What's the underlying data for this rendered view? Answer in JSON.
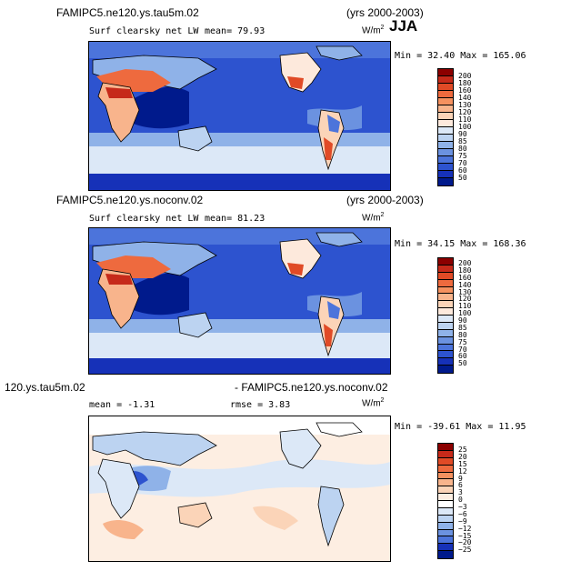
{
  "season": "JJA",
  "panels": [
    {
      "case": "FAMIPC5.ne120.ys.tau5m.02",
      "years": "(yrs 2000-2003)",
      "variable": "Surf clearsky net LW",
      "stat": "mean=  79.93",
      "units": "W/m",
      "units_sup": "2",
      "minmax": "Min =  32.40 Max = 165.06",
      "levels": [
        "200",
        "180",
        "160",
        "140",
        "130",
        "120",
        "110",
        "100",
        "90",
        "85",
        "80",
        "75",
        "70",
        "60",
        "50"
      ],
      "colors": [
        "#8b0000",
        "#c62a1a",
        "#e04a26",
        "#ee6a3e",
        "#f5915f",
        "#f8b48c",
        "#fbd4b8",
        "#fde9dc",
        "#dce8f7",
        "#bcd3f1",
        "#8fb2e8",
        "#6b92e0",
        "#4c74db",
        "#2d53cf",
        "#1631b8",
        "#001a8c"
      ],
      "type": "abs"
    },
    {
      "case": "FAMIPC5.ne120.ys.noconv.02",
      "years": "(yrs 2000-2003)",
      "variable": "Surf clearsky net LW",
      "stat": "mean=  81.23",
      "units": "W/m",
      "units_sup": "2",
      "minmax": "Min =  34.15 Max = 168.36",
      "levels": [
        "200",
        "180",
        "160",
        "140",
        "130",
        "120",
        "110",
        "100",
        "90",
        "85",
        "80",
        "75",
        "70",
        "60",
        "50"
      ],
      "colors": [
        "#8b0000",
        "#c62a1a",
        "#e04a26",
        "#ee6a3e",
        "#f5915f",
        "#f8b48c",
        "#fbd4b8",
        "#fde9dc",
        "#dce8f7",
        "#bcd3f1",
        "#8fb2e8",
        "#6b92e0",
        "#4c74db",
        "#2d53cf",
        "#1631b8",
        "#001a8c"
      ],
      "type": "abs"
    },
    {
      "case": "120.ys.tau5m.02",
      "case2": "- FAMIPC5.ne120.ys.noconv.02",
      "stat": "mean =  -1.31",
      "rmse": "rmse =   3.83",
      "units": "W/m",
      "units_sup": "2",
      "minmax": "Min = -39.61 Max =  11.95",
      "levels": [
        "25",
        "20",
        "15",
        "12",
        "9",
        "6",
        "3",
        "0",
        "−3",
        "−6",
        "−9",
        "−12",
        "−15",
        "−20",
        "−25"
      ],
      "colors": [
        "#8b0000",
        "#c62a1a",
        "#e04a26",
        "#ee6a3e",
        "#f5915f",
        "#f8b48c",
        "#fbd4b8",
        "#fdeee2",
        "#ffffff",
        "#dce8f7",
        "#bcd3f1",
        "#8fb2e8",
        "#6b92e0",
        "#4c74db",
        "#1631b8",
        "#001a8c"
      ],
      "type": "diff"
    }
  ]
}
